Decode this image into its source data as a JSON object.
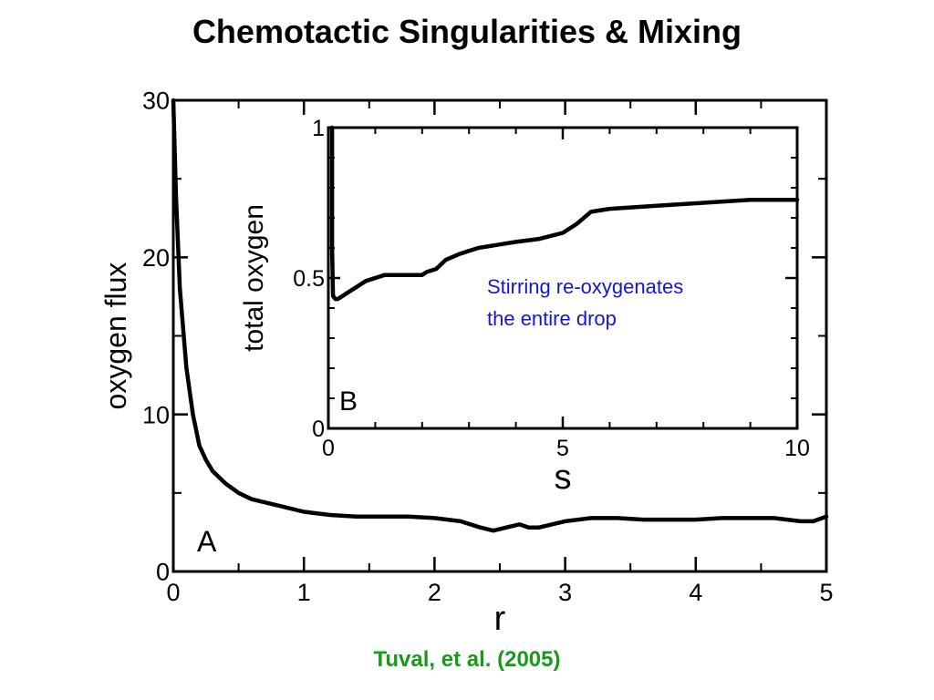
{
  "slide": {
    "title": "Chemotactic Singularities & Mixing",
    "citation": "Tuval, et al. (2005)",
    "citation_color": "#1a9a1a"
  },
  "chart_data": [
    {
      "type": "line",
      "panel_label": "A",
      "xlabel": "r",
      "ylabel": "oxygen flux",
      "xlim": [
        0,
        5
      ],
      "ylim": [
        0,
        30
      ],
      "xticks": [
        0,
        1,
        2,
        3,
        4,
        5
      ],
      "yticks": [
        0,
        10,
        20,
        30
      ],
      "grid": false,
      "series": [
        {
          "color": "#000000",
          "x": [
            0,
            0.02,
            0.05,
            0.1,
            0.15,
            0.2,
            0.25,
            0.3,
            0.4,
            0.5,
            0.6,
            0.8,
            1.0,
            1.2,
            1.4,
            1.6,
            1.8,
            2.0,
            2.2,
            2.35,
            2.45,
            2.55,
            2.65,
            2.72,
            2.8,
            2.9,
            3.0,
            3.2,
            3.4,
            3.6,
            3.8,
            4.0,
            4.2,
            4.4,
            4.6,
            4.8,
            4.9,
            5.0
          ],
          "y": [
            30,
            24,
            18,
            13,
            10,
            8,
            7.1,
            6.4,
            5.6,
            5.0,
            4.6,
            4.2,
            3.8,
            3.6,
            3.5,
            3.5,
            3.5,
            3.4,
            3.2,
            2.8,
            2.6,
            2.8,
            3.0,
            2.8,
            2.8,
            3.0,
            3.2,
            3.4,
            3.4,
            3.3,
            3.3,
            3.3,
            3.4,
            3.4,
            3.4,
            3.2,
            3.2,
            3.5
          ]
        }
      ]
    },
    {
      "type": "line",
      "panel_label": "B",
      "xlabel": "s",
      "ylabel": "total oxygen",
      "xlim": [
        0,
        10
      ],
      "ylim": [
        0,
        1
      ],
      "xticks": [
        0,
        5,
        10
      ],
      "yticks": [
        0,
        0.5,
        1
      ],
      "grid": false,
      "annotation": [
        "Stirring re-oxygenates",
        "the entire drop"
      ],
      "annotation_color": "#1515d6",
      "series": [
        {
          "color": "#000000",
          "x": [
            0.08,
            0.08,
            0.1,
            0.15,
            0.2,
            0.3,
            0.5,
            0.8,
            1.2,
            1.6,
            2.0,
            2.1,
            2.3,
            2.5,
            2.8,
            3.2,
            3.6,
            4.0,
            4.5,
            5.0,
            5.3,
            5.6,
            6.0,
            7.0,
            8.0,
            9.0,
            10.0
          ],
          "y": [
            1.0,
            0.6,
            0.44,
            0.43,
            0.43,
            0.44,
            0.46,
            0.49,
            0.51,
            0.51,
            0.51,
            0.52,
            0.53,
            0.56,
            0.58,
            0.6,
            0.61,
            0.62,
            0.63,
            0.65,
            0.68,
            0.72,
            0.73,
            0.74,
            0.75,
            0.76,
            0.76
          ]
        }
      ]
    }
  ]
}
